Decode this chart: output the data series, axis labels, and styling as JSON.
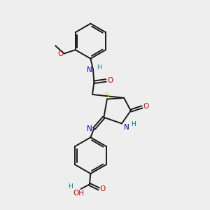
{
  "bg_color": "#eeeeee",
  "bond_color": "#1a1a1a",
  "atom_colors": {
    "N": "#0000cc",
    "O": "#cc0000",
    "S": "#cccc00",
    "H": "#008080"
  },
  "lw": 1.4,
  "fs": 7.5,
  "fs_small": 6.5
}
